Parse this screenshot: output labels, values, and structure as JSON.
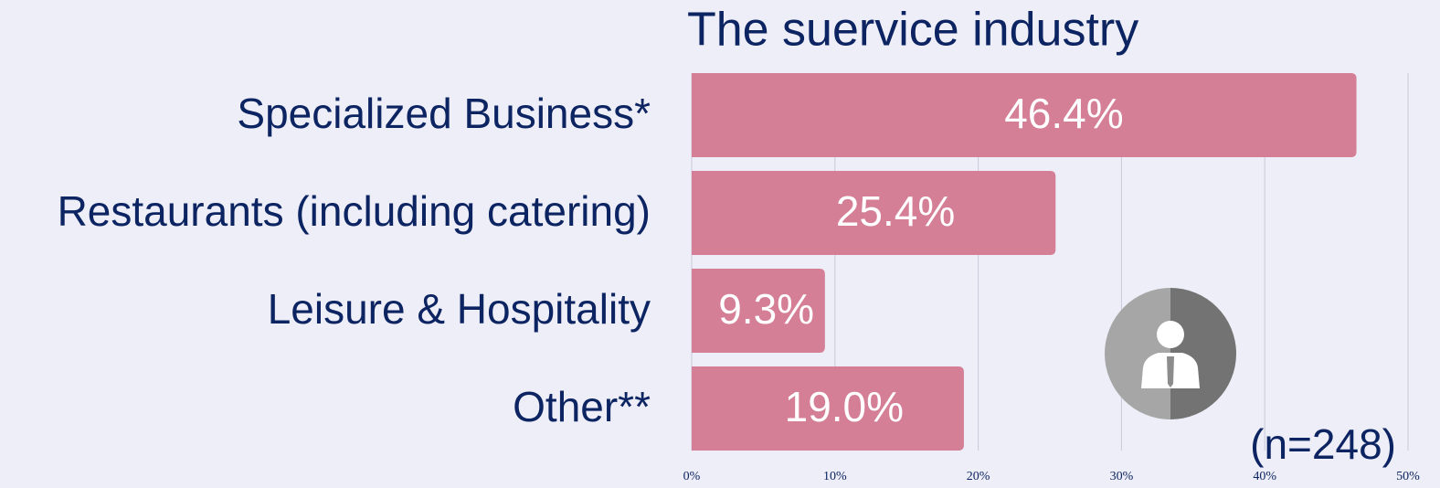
{
  "chart_data": {
    "type": "bar",
    "orientation": "horizontal",
    "title": "The suervice industry",
    "categories": [
      "Specialized Business*",
      "Restaurants (including catering)",
      "Leisure & Hospitality",
      "Other**"
    ],
    "values": [
      46.4,
      25.4,
      9.3,
      19.0
    ],
    "value_labels": [
      "46.4%",
      "25.4%",
      "9.3%",
      "19.0%"
    ],
    "color": "#d47f96",
    "xlim": [
      0,
      50
    ],
    "xticks": [
      {
        "value": 0,
        "label": "0%"
      },
      {
        "value": 10,
        "label": "10%"
      },
      {
        "value": 20,
        "label": "20%"
      },
      {
        "value": 30,
        "label": "30%"
      },
      {
        "value": 40,
        "label": "40%"
      },
      {
        "value": 50,
        "label": "50%"
      }
    ],
    "grid": true,
    "annotation": "(n=248)"
  }
}
